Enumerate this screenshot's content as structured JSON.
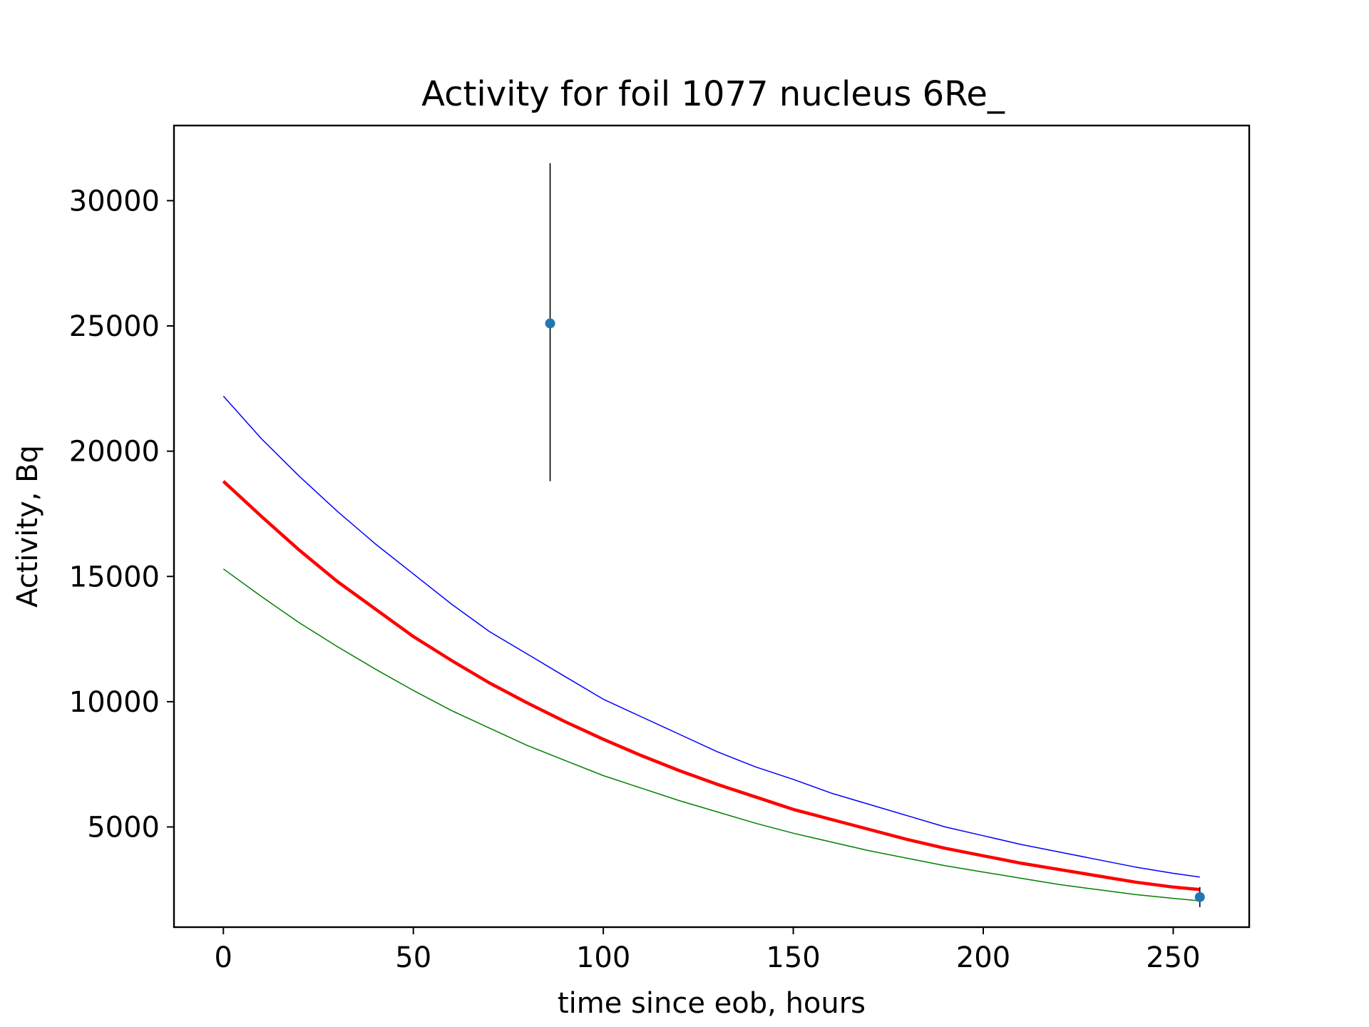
{
  "chart_data": {
    "type": "line",
    "title": "Activity for foil 1077 nucleus 6Re_",
    "xlabel": "time since eob, hours",
    "ylabel": "Activity, Bq",
    "xlim": [
      -13,
      270
    ],
    "ylim": [
      1000,
      33000
    ],
    "x_ticks": [
      0,
      50,
      100,
      150,
      200,
      250
    ],
    "y_ticks": [
      5000,
      10000,
      15000,
      20000,
      25000,
      30000
    ],
    "x_tick_labels": [
      "0",
      "50",
      "100",
      "150",
      "200",
      "250"
    ],
    "y_tick_labels": [
      "5000",
      "10000",
      "15000",
      "20000",
      "25000",
      "30000"
    ],
    "grid": false,
    "legend": "none",
    "series": [
      {
        "kind": "curve",
        "color": "#0000ff",
        "x": [
          0,
          10,
          20,
          30,
          40,
          50,
          60,
          70,
          80,
          90,
          100,
          110,
          120,
          130,
          140,
          150,
          160,
          170,
          180,
          190,
          200,
          210,
          220,
          230,
          240,
          250,
          257
        ],
        "y": [
          22200,
          20500,
          19000,
          17600,
          16300,
          15100,
          13900,
          12800,
          11900,
          11000,
          10100,
          9400,
          8700,
          8000,
          7400,
          6900,
          6350,
          5900,
          5450,
          5000,
          4650,
          4300,
          4000,
          3700,
          3400,
          3150,
          3000
        ]
      },
      {
        "kind": "curve",
        "color": "#ff0000",
        "x": [
          0,
          10,
          20,
          30,
          40,
          50,
          60,
          70,
          80,
          90,
          100,
          110,
          120,
          130,
          140,
          150,
          160,
          170,
          180,
          190,
          200,
          210,
          220,
          230,
          240,
          250,
          257
        ],
        "y": [
          18800,
          17400,
          16050,
          14800,
          13700,
          12600,
          11650,
          10750,
          9950,
          9200,
          8500,
          7850,
          7250,
          6700,
          6200,
          5700,
          5300,
          4900,
          4500,
          4150,
          3850,
          3550,
          3300,
          3050,
          2800,
          2600,
          2500
        ]
      },
      {
        "kind": "curve",
        "color": "#008000",
        "x": [
          0,
          10,
          20,
          30,
          40,
          50,
          60,
          70,
          80,
          90,
          100,
          110,
          120,
          130,
          140,
          150,
          160,
          170,
          180,
          190,
          200,
          210,
          220,
          230,
          240,
          250,
          257
        ],
        "y": [
          15300,
          14200,
          13150,
          12200,
          11300,
          10450,
          9650,
          8950,
          8250,
          7650,
          7050,
          6550,
          6050,
          5600,
          5150,
          4750,
          4400,
          4050,
          3750,
          3450,
          3200,
          2950,
          2700,
          2500,
          2300,
          2150,
          2050
        ]
      },
      {
        "kind": "points",
        "color": "#1f77b4",
        "x": [
          86,
          257
        ],
        "y": [
          25100,
          2200
        ],
        "yerr_low": [
          18800,
          1800
        ],
        "yerr_high": [
          31500,
          2600
        ]
      }
    ]
  }
}
